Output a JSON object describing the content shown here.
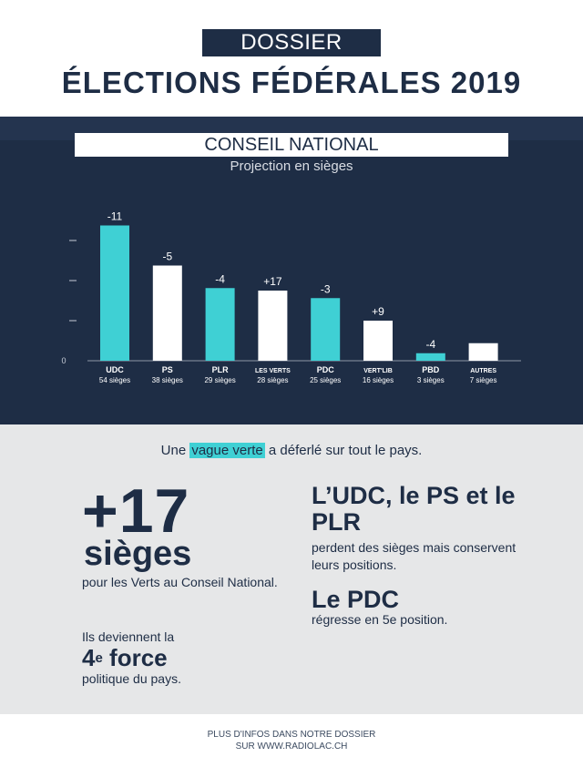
{
  "header": {
    "tag": "DOSSIER",
    "title": "ÉLECTIONS FÉDÉRALES 2019"
  },
  "panel": {
    "title": "CONSEIL NATIONAL",
    "subtitle": "Projection en sièges"
  },
  "colors": {
    "navy": "#1e2d45",
    "cyan": "#3fd0d4",
    "white": "#ffffff",
    "grey": "#e6e7e8"
  },
  "chart_data": {
    "type": "bar",
    "title": "CONSEIL NATIONAL",
    "subtitle": "Projection en sièges",
    "categories": [
      "UDC",
      "PS",
      "PLR",
      "LES VERTS",
      "PDC",
      "VERT'LIB",
      "PBD",
      "AUTRES"
    ],
    "values": [
      54,
      38,
      29,
      28,
      25,
      16,
      3,
      7
    ],
    "value_labels": [
      "54 sièges",
      "38 sièges",
      "29 sièges",
      "28 sièges",
      "25 sièges",
      "16 sièges",
      "3 sièges",
      "7 sièges"
    ],
    "changes": [
      "-11",
      "-5",
      "-4",
      "+17",
      "-3",
      "+9",
      "-4",
      ""
    ],
    "bar_colors": [
      "#3fd0d4",
      "#ffffff",
      "#3fd0d4",
      "#ffffff",
      "#3fd0d4",
      "#ffffff",
      "#3fd0d4",
      "#ffffff"
    ],
    "y_zero_label": "0",
    "ylim": [
      0,
      60
    ],
    "y_ticks": [
      0,
      16,
      32,
      48
    ],
    "grid": false,
    "xlabel": "",
    "ylabel": ""
  },
  "info": {
    "lead_before": "Une ",
    "lead_highlight": "vague verte",
    "lead_after": " a déferlé sur tout le pays.",
    "big_number": "+17",
    "big_unit": "sièges",
    "left_text1": "pour les Verts au Conseil National.",
    "left_text2": "Ils deviennent la",
    "force_number": "4",
    "force_sup": "e",
    "force_word": " force",
    "left_text3": "politique du pays.",
    "right_head": "L’UDC, le PS et le PLR",
    "right_text1": "perdent des sièges mais conservent leurs positions.",
    "right_head2": "Le PDC",
    "right_text2": "régresse en 5e position."
  },
  "footer": {
    "line1": "PLUS D'INFOS DANS NOTRE DOSSIER",
    "line2": "SUR WWW.RADIOLAC.CH"
  }
}
